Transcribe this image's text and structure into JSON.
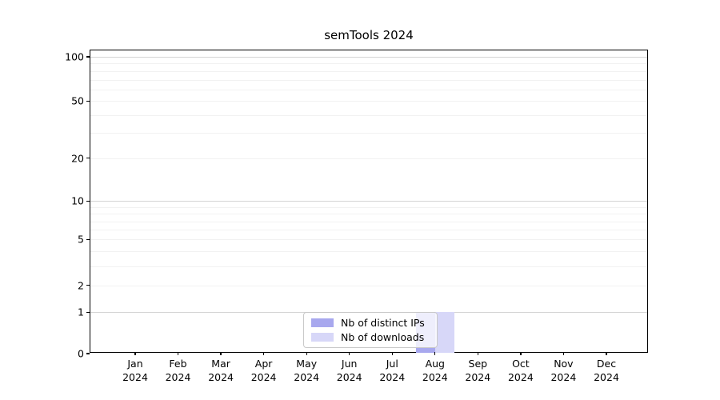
{
  "chart_data": {
    "type": "bar",
    "title": "semTools 2024",
    "months": [
      "Jan",
      "Feb",
      "Mar",
      "Apr",
      "May",
      "Jun",
      "Jul",
      "Aug",
      "Sep",
      "Oct",
      "Nov",
      "Dec"
    ],
    "year": "2024",
    "series": [
      {
        "name": "Nb of distinct IPs",
        "color": "#a8a8ee",
        "values": [
          0,
          0,
          0,
          0,
          0,
          0,
          0,
          1,
          0,
          0,
          0,
          0
        ]
      },
      {
        "name": "Nb of downloads",
        "color": "#d7d7f8",
        "values": [
          0,
          0,
          0,
          0,
          0,
          0,
          0,
          1,
          0,
          0,
          0,
          0
        ]
      }
    ],
    "yscale": "log1p",
    "ylim": [
      0,
      110
    ],
    "yticks": [
      100,
      50,
      20,
      10,
      5,
      2,
      1,
      0
    ],
    "grid": {
      "on": true,
      "major_lines": [
        1,
        10,
        100
      ],
      "minor_lines": [
        2,
        3,
        4,
        5,
        6,
        7,
        8,
        9,
        20,
        30,
        40,
        50,
        60,
        70,
        80,
        90
      ]
    },
    "legend": {
      "position": "lower center"
    },
    "colors": {
      "major_grid": "#d4d4d4",
      "minor_grid": "#f1f1f1",
      "spine": "#000000"
    }
  }
}
